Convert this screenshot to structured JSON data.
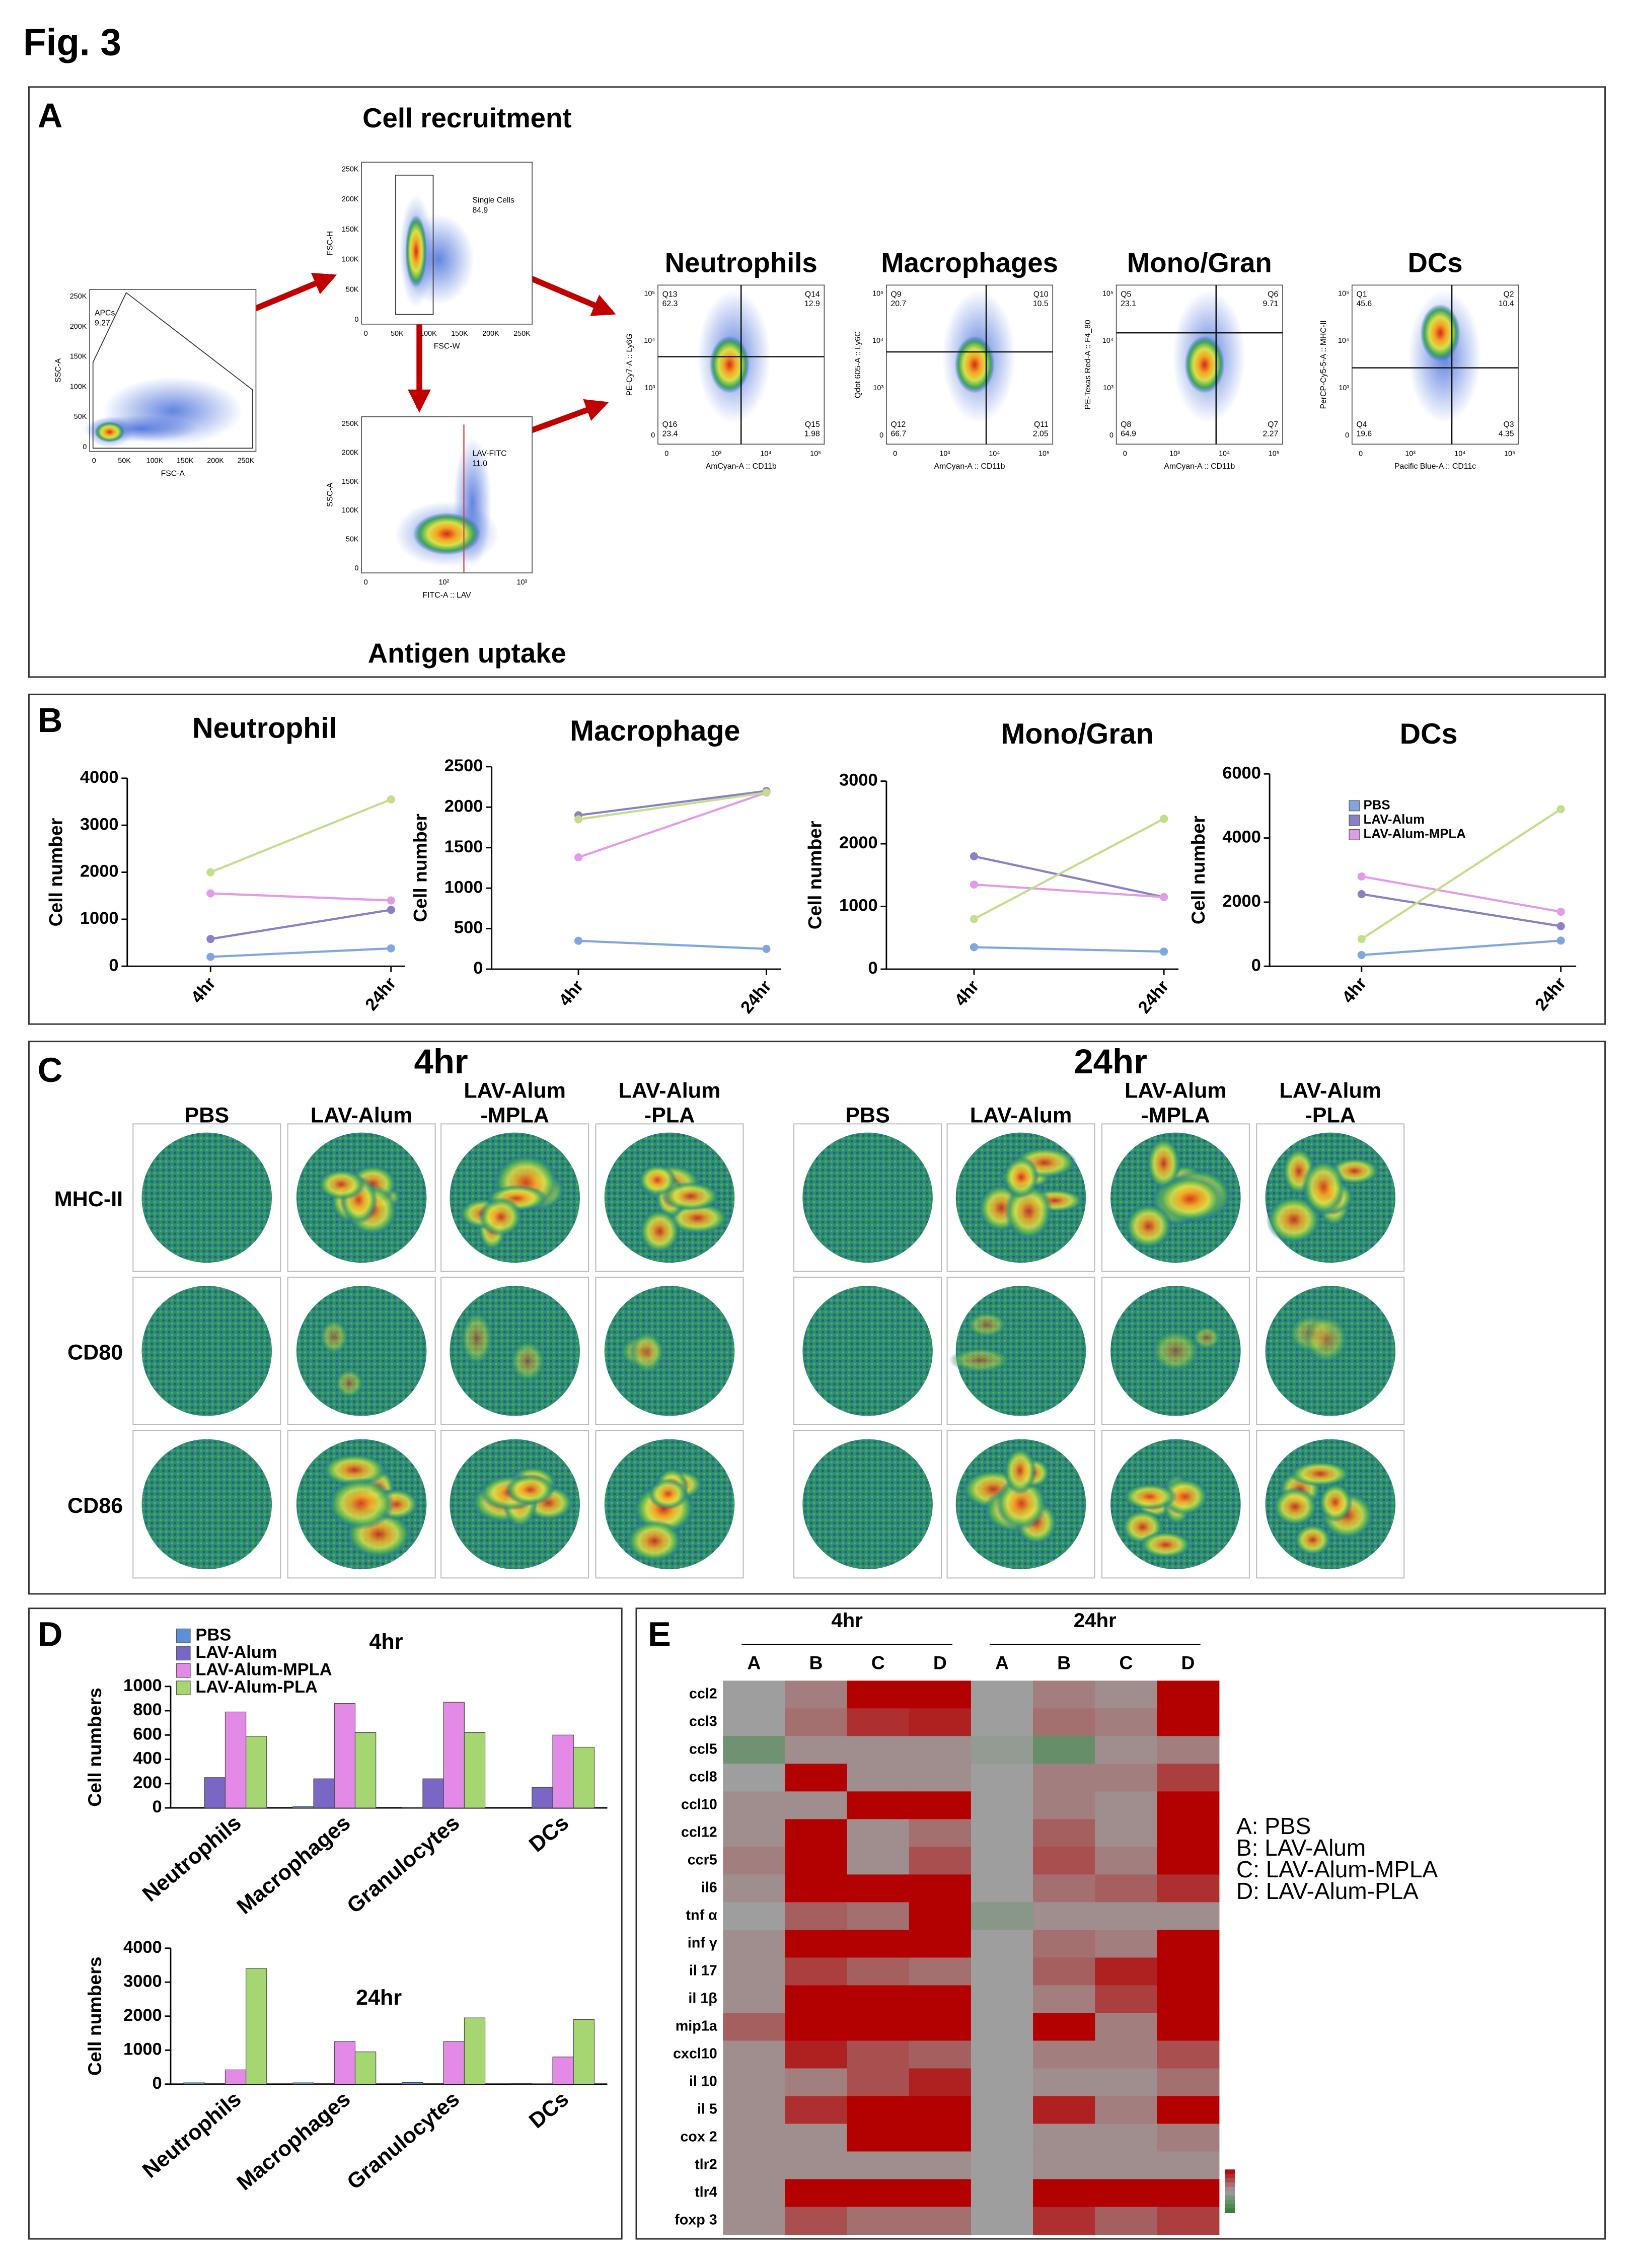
{
  "figure_title": "Fig. 3",
  "panel_labels": [
    "A",
    "B",
    "C",
    "D",
    "E"
  ],
  "panel_a": {
    "recruitment": "Cell recruitment",
    "uptake": "Antigen uptake",
    "gating": [
      {
        "gate": "APCs",
        "value": "9.27",
        "x_label": "FSC-A",
        "y_label": "SSC-A",
        "x_ticks": [
          "0",
          "50K",
          "100K",
          "150K",
          "200K",
          "250K"
        ],
        "y_ticks": [
          "0",
          "50K",
          "100K",
          "150K",
          "200K",
          "250K"
        ]
      },
      {
        "gate": "Single Cells",
        "value": "84.9",
        "x_label": "FSC-W",
        "y_label": "FSC-H",
        "x_ticks": [
          "0",
          "50K",
          "100K",
          "150K",
          "200K",
          "250K"
        ],
        "y_ticks": [
          "0",
          "50K",
          "100K",
          "150K",
          "200K",
          "250K"
        ]
      },
      {
        "gate": "LAV-FITC",
        "value": "11.0",
        "x_label": "FITC-A :: LAV",
        "y_label": "SSC-A",
        "x_ticks": [
          "0",
          "10²",
          "10³"
        ],
        "y_ticks": [
          "0",
          "50K",
          "100K",
          "150K",
          "200K",
          "250K"
        ]
      }
    ],
    "quadrant_plots": [
      {
        "title": "Neutrophils",
        "x_label": "AmCyan-A :: CD11b",
        "y_label": "PE-Cy7-A :: Ly6G",
        "ticks": [
          "0",
          "10³",
          "10⁴",
          "10⁵"
        ],
        "quadrants": [
          [
            "Q13",
            "62.3"
          ],
          [
            "Q14",
            "12.9"
          ],
          [
            "Q16",
            "23.4"
          ],
          [
            "Q15",
            "1.98"
          ]
        ]
      },
      {
        "title": "Macrophages",
        "x_label": "AmCyan-A :: CD11b",
        "y_label": "Qdot 605-A :: Ly6C",
        "ticks": [
          "0",
          "10³",
          "10⁴",
          "10⁵"
        ],
        "quadrants": [
          [
            "Q9",
            "20.7"
          ],
          [
            "Q10",
            "10.5"
          ],
          [
            "Q12",
            "66.7"
          ],
          [
            "Q11",
            "2.05"
          ]
        ]
      },
      {
        "title": "Mono/Gran",
        "x_label": "AmCyan-A :: CD11b",
        "y_label": "PE-Texas Red-A :: F4_80",
        "ticks": [
          "0",
          "10³",
          "10⁴",
          "10⁵"
        ],
        "quadrants": [
          [
            "Q5",
            "23.1"
          ],
          [
            "Q6",
            "9.71"
          ],
          [
            "Q8",
            "64.9"
          ],
          [
            "Q7",
            "2.27"
          ]
        ]
      },
      {
        "title": "DCs",
        "x_label": "Pacific Blue-A :: CD11c",
        "y_label": "PerCP-Cy5-5-A :: MHC-II",
        "ticks": [
          "0",
          "10³",
          "10⁴",
          "10⁵"
        ],
        "quadrants": [
          [
            "Q1",
            "45.6"
          ],
          [
            "Q2",
            "10.4"
          ],
          [
            "Q4",
            "19.6"
          ],
          [
            "Q3",
            "4.35"
          ]
        ]
      }
    ]
  },
  "panel_c": {
    "groups": [
      "4hr",
      "24hr"
    ],
    "columns": [
      [
        "PBS"
      ],
      [
        "LAV-Alum"
      ],
      [
        "LAV-Alum",
        "-MPLA"
      ],
      [
        "LAV-Alum",
        "-PLA"
      ]
    ],
    "rows": [
      "MHC-II",
      "CD80",
      "CD86"
    ]
  },
  "chart_data": [
    {
      "type": "line",
      "title": "Neutrophil",
      "y_label": "Cell number",
      "categories": [
        "4hr",
        "24hr"
      ],
      "ylim": [
        0,
        4000
      ],
      "yticks": [
        0,
        1000,
        2000,
        3000,
        4000
      ],
      "series": [
        {
          "color": "#7fa6de",
          "values": [
            200,
            380
          ]
        },
        {
          "color": "#8b7fc6",
          "values": [
            580,
            1200
          ]
        },
        {
          "color": "#e29be6",
          "values": [
            1550,
            1400
          ]
        },
        {
          "color": "#c3dd8a",
          "values": [
            2000,
            3550
          ]
        }
      ]
    },
    {
      "type": "line",
      "title": "Macrophage",
      "y_label": "Cell number",
      "categories": [
        "4hr",
        "24hr"
      ],
      "ylim": [
        0,
        2500
      ],
      "yticks": [
        0,
        500,
        1000,
        1500,
        2000,
        2500
      ],
      "series": [
        {
          "color": "#7fa6de",
          "values": [
            350,
            250
          ]
        },
        {
          "color": "#8b7fc6",
          "values": [
            1900,
            2200
          ]
        },
        {
          "color": "#e29be6",
          "values": [
            1380,
            2180
          ]
        },
        {
          "color": "#c3dd8a",
          "values": [
            1850,
            2180
          ]
        }
      ]
    },
    {
      "type": "line",
      "title": "Mono/Gran",
      "y_label": "Cell number",
      "categories": [
        "4hr",
        "24hr"
      ],
      "ylim": [
        0,
        3000
      ],
      "yticks": [
        0,
        1000,
        2000,
        3000
      ],
      "series": [
        {
          "color": "#7fa6de",
          "values": [
            350,
            280
          ]
        },
        {
          "color": "#8b7fc6",
          "values": [
            1800,
            1150
          ]
        },
        {
          "color": "#e29be6",
          "values": [
            1350,
            1150
          ]
        },
        {
          "color": "#c3dd8a",
          "values": [
            800,
            2400
          ]
        }
      ]
    },
    {
      "type": "line",
      "title": "DCs",
      "y_label": "Cell number",
      "categories": [
        "4hr",
        "24hr"
      ],
      "ylim": [
        0,
        6000
      ],
      "yticks": [
        0,
        2000,
        4000,
        6000
      ],
      "legend": "upper left",
      "series": [
        {
          "name": "PBS",
          "color": "#7fa6de",
          "values": [
            350,
            800
          ]
        },
        {
          "name": "LAV-Alum",
          "color": "#8b7fc6",
          "values": [
            2250,
            1250
          ]
        },
        {
          "name": "LAV-Alum-MPLA",
          "color": "#e29be6",
          "values": [
            2800,
            1700
          ]
        },
        {
          "color": "#c3dd8a",
          "values": [
            850,
            4900
          ]
        }
      ]
    },
    {
      "type": "bar",
      "title": "4hr",
      "y_label": "Cell numbers",
      "categories": [
        "Neutrophils",
        "Macrophages",
        "Granulocytes",
        "DCs"
      ],
      "ylim": [
        0,
        1000
      ],
      "yticks": [
        0,
        200,
        400,
        600,
        800,
        1000
      ],
      "legend": "upper left",
      "series": [
        {
          "name": "PBS",
          "color": "#5b8fd8",
          "values": [
            0,
            10,
            5,
            0
          ]
        },
        {
          "name": "LAV-Alum",
          "color": "#7a66c4",
          "values": [
            250,
            240,
            240,
            170
          ]
        },
        {
          "name": "LAV-Alum-MPLA",
          "color": "#e28ae6",
          "values": [
            790,
            860,
            870,
            600
          ]
        },
        {
          "name": "LAV-Alum-PLA",
          "color": "#a5d672",
          "values": [
            590,
            620,
            620,
            500
          ]
        }
      ]
    },
    {
      "type": "bar",
      "title": "24hr",
      "y_label": "Cell numbers",
      "categories": [
        "Neutrophils",
        "Macrophages",
        "Granulocytes",
        "DCs"
      ],
      "ylim": [
        0,
        4000
      ],
      "yticks": [
        0,
        1000,
        2000,
        3000,
        4000
      ],
      "series": [
        {
          "color": "#5b8fd8",
          "values": [
            40,
            40,
            50,
            20
          ]
        },
        {
          "color": "#7a66c4",
          "values": [
            20,
            20,
            20,
            10
          ]
        },
        {
          "color": "#e28ae6",
          "values": [
            420,
            1250,
            1250,
            800
          ]
        },
        {
          "color": "#a5d672",
          "values": [
            3400,
            950,
            1950,
            1900
          ]
        }
      ]
    },
    {
      "type": "heatmap",
      "x_groups": [
        "4hr",
        "24hr"
      ],
      "x": [
        "A",
        "B",
        "C",
        "D",
        "A",
        "B",
        "C",
        "D"
      ],
      "y": [
        "ccl2",
        "ccl3",
        "ccl5",
        "ccl8",
        "ccl10",
        "ccl12",
        "ccr5",
        "il6",
        "tnf α",
        "inf γ",
        "il 17",
        "il 1β",
        "mip1a",
        "cxcl10",
        "il 10",
        "il 5",
        "cox 2",
        "tlr2",
        "tlr4",
        "foxp 3"
      ],
      "z": [
        [
          0,
          0.2,
          1,
          1,
          0,
          0.2,
          0.1,
          1
        ],
        [
          0,
          0.3,
          0.7,
          0.8,
          0,
          0.3,
          0.2,
          1
        ],
        [
          -0.4,
          0.1,
          0.1,
          0.1,
          -0.1,
          -0.5,
          0.1,
          0.2
        ],
        [
          0,
          1,
          0.1,
          0.1,
          0,
          0.2,
          0.2,
          0.6
        ],
        [
          0.1,
          0.1,
          1,
          1,
          0,
          0.2,
          0.1,
          1
        ],
        [
          0.1,
          1,
          0.1,
          0.3,
          0,
          0.4,
          0.1,
          1
        ],
        [
          0.2,
          1,
          0.1,
          0.5,
          0,
          0.5,
          0.2,
          1
        ],
        [
          0.1,
          1,
          1,
          1,
          0,
          0.3,
          0.4,
          0.7
        ],
        [
          0,
          0.4,
          0.3,
          1,
          -0.2,
          0.1,
          0.1,
          0.1
        ],
        [
          0.1,
          1,
          1,
          1,
          0,
          0.3,
          0.2,
          1
        ],
        [
          0.1,
          0.6,
          0.4,
          0.3,
          0,
          0.4,
          0.8,
          1
        ],
        [
          0.1,
          1,
          1,
          1,
          0,
          0.2,
          0.6,
          1
        ],
        [
          0.4,
          1,
          1,
          1,
          0,
          1,
          0.2,
          1
        ],
        [
          0.1,
          0.8,
          0.5,
          0.4,
          0,
          0.2,
          0.2,
          0.5
        ],
        [
          0.1,
          0.2,
          0.5,
          0.8,
          0,
          0.1,
          0.1,
          0.3
        ],
        [
          0.1,
          0.7,
          1,
          1,
          0,
          0.8,
          0.2,
          1
        ],
        [
          0.1,
          0.1,
          1,
          1,
          0,
          0.1,
          0.1,
          0.2
        ],
        [
          0.1,
          0.1,
          0.1,
          0.1,
          0,
          0.1,
          0.1,
          0.1
        ],
        [
          0.1,
          1,
          1,
          1,
          0,
          1,
          1,
          1
        ],
        [
          0.1,
          0.5,
          0.3,
          0.3,
          0,
          0.7,
          0.4,
          0.6
        ]
      ],
      "zlim": [
        -1,
        1
      ],
      "colors": [
        "#2e7d32",
        "#9e9e9e",
        "#b30000"
      ],
      "key": [
        "A: PBS",
        "B: LAV-Alum",
        "C: LAV-Alum-MPLA",
        "D: LAV-Alum-PLA"
      ]
    }
  ]
}
